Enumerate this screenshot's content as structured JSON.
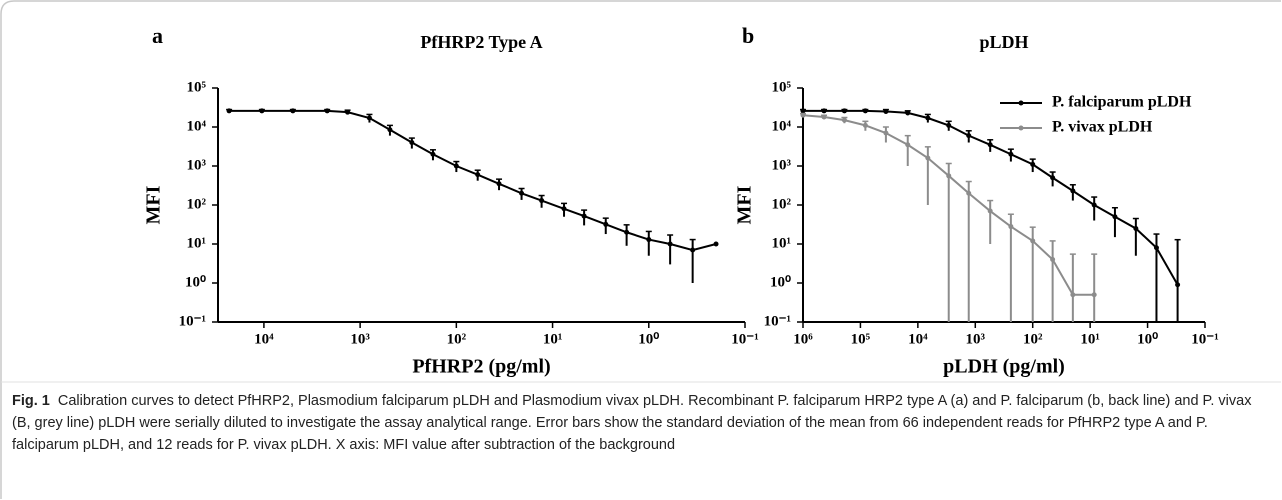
{
  "chart_data": [
    {
      "type": "line",
      "panel": "a",
      "title": "PfHRP2 Type A",
      "xlabel": "PfHRP2 (pg/ml)",
      "ylabel": "MFI",
      "xscale": "log",
      "yscale": "log",
      "xlim": [
        30000,
        0.1
      ],
      "ylim": [
        0.1,
        100000
      ],
      "xticks": [
        {
          "value": 10000,
          "label": "10⁴"
        },
        {
          "value": 1000,
          "label": "10³"
        },
        {
          "value": 100,
          "label": "10²"
        },
        {
          "value": 10,
          "label": "10¹"
        },
        {
          "value": 1,
          "label": "10⁰"
        },
        {
          "value": 0.1,
          "label": "10⁻¹"
        }
      ],
      "yticks": [
        {
          "value": 0.1,
          "label": "10⁻¹"
        },
        {
          "value": 1,
          "label": "10⁰"
        },
        {
          "value": 10,
          "label": "10¹"
        },
        {
          "value": 100,
          "label": "10²"
        },
        {
          "value": 1000,
          "label": "10³"
        },
        {
          "value": 10000,
          "label": "10⁴"
        },
        {
          "value": 100000,
          "label": "10⁵"
        }
      ],
      "x": [
        23000,
        10500,
        5000,
        2200,
        1350,
        800,
        490,
        290,
        175,
        100,
        60,
        36,
        21,
        13,
        7.6,
        4.7,
        2.8,
        1.7,
        1,
        0.6,
        0.35,
        0.2
      ],
      "series": [
        {
          "color": "#000000",
          "values": [
            26000,
            26000,
            26000,
            26000,
            24000,
            17000,
            8500,
            4000,
            2000,
            1000,
            600,
            350,
            200,
            130,
            80,
            52,
            32,
            20,
            13,
            10,
            7,
            10
          ],
          "errors": [
            2000,
            2000,
            2000,
            2000,
            3000,
            4000,
            2500,
            1200,
            600,
            300,
            180,
            110,
            65,
            45,
            30,
            22,
            14,
            11,
            8,
            7,
            6,
            null
          ]
        }
      ]
    },
    {
      "type": "line",
      "panel": "b",
      "title": "pLDH",
      "xlabel": "pLDH (pg/ml)",
      "ylabel": "MFI",
      "xscale": "log",
      "yscale": "log",
      "xlim": [
        1000000,
        0.1
      ],
      "ylim": [
        0.1,
        100000
      ],
      "legend": "upper right",
      "xticks": [
        {
          "value": 1000000,
          "label": "10⁶"
        },
        {
          "value": 100000,
          "label": "10⁵"
        },
        {
          "value": 10000,
          "label": "10⁴"
        },
        {
          "value": 1000,
          "label": "10³"
        },
        {
          "value": 100,
          "label": "10²"
        },
        {
          "value": 10,
          "label": "10¹"
        },
        {
          "value": 1,
          "label": "10⁰"
        },
        {
          "value": 0.1,
          "label": "10⁻¹"
        }
      ],
      "yticks": [
        {
          "value": 0.1,
          "label": "10⁻¹"
        },
        {
          "value": 1,
          "label": "10⁰"
        },
        {
          "value": 10,
          "label": "10¹"
        },
        {
          "value": 100,
          "label": "10²"
        },
        {
          "value": 1000,
          "label": "10³"
        },
        {
          "value": 10000,
          "label": "10⁴"
        },
        {
          "value": 100000,
          "label": "10⁵"
        }
      ],
      "x": [
        1000000,
        430000,
        190000,
        82000,
        36000,
        15000,
        6700,
        2900,
        1300,
        550,
        240,
        100,
        45,
        20,
        8.5,
        3.7,
        1.6,
        0.7,
        0.3
      ],
      "series": [
        {
          "name": "P. falciparum pLDH",
          "color": "#000000",
          "values": [
            26000,
            26000,
            26000,
            26000,
            25000,
            23000,
            17000,
            11000,
            6000,
            3500,
            2000,
            1100,
            500,
            230,
            100,
            50,
            25,
            8,
            0.9
          ],
          "errors": [
            2000,
            2000,
            2000,
            2000,
            3000,
            3000,
            4000,
            3000,
            2000,
            1200,
            700,
            400,
            200,
            100,
            60,
            35,
            20,
            10,
            12
          ]
        },
        {
          "name": "P. vivax pLDH",
          "color": "#8c8c8c",
          "values": [
            20000,
            18000,
            15000,
            11000,
            7000,
            3500,
            1600,
            560,
            200,
            70,
            28,
            12,
            4,
            0.5,
            0.5,
            null,
            null,
            null,
            null
          ],
          "errors": [
            2000,
            2000,
            2500,
            3000,
            3000,
            2500,
            1500,
            600,
            200,
            60,
            30,
            15,
            8,
            5,
            5,
            null,
            null,
            null,
            null
          ]
        }
      ]
    }
  ],
  "caption": {
    "label": "Fig. 1",
    "text": "Calibration curves to detect PfHRP2, Plasmodium falciparum pLDH and Plasmodium vivax pLDH. Recombinant P. falciparum HRP2 type A (a) and P. falciparum (b, back line) and P. vivax (B, grey line) pLDH were serially diluted to investigate the assay analytical range. Error bars show the standard deviation of the mean from 66 independent reads for PfHRP2 type A and P. falciparum pLDH, and 12 reads for P. vivax pLDH. X axis: MFI value after subtraction of the background"
  }
}
